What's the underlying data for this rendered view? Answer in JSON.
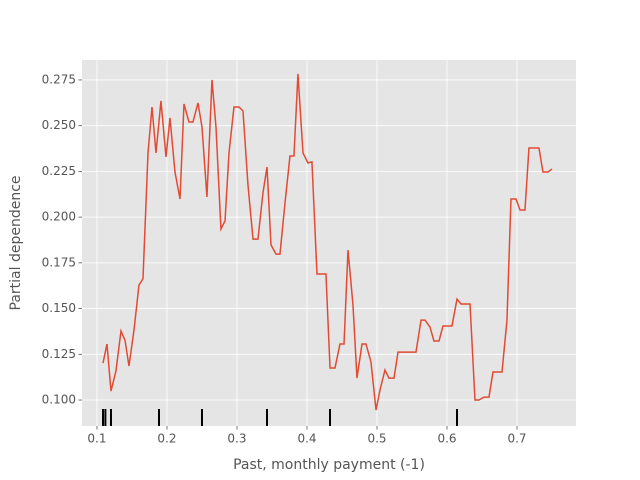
{
  "chart_data": {
    "type": "line",
    "xlabel": "Past, monthly payment (-1)",
    "ylabel": "Partial dependence",
    "x": [
      0.1086,
      0.1143,
      0.12,
      0.1271,
      0.1343,
      0.14,
      0.1457,
      0.1529,
      0.16,
      0.1657,
      0.1729,
      0.1786,
      0.1843,
      0.1914,
      0.1986,
      0.2043,
      0.2114,
      0.2186,
      0.2243,
      0.2314,
      0.2371,
      0.2443,
      0.25,
      0.2571,
      0.2643,
      0.27,
      0.2771,
      0.2829,
      0.2886,
      0.2957,
      0.3029,
      0.3086,
      0.3157,
      0.3229,
      0.33,
      0.3371,
      0.3429,
      0.3486,
      0.3557,
      0.3614,
      0.3686,
      0.3757,
      0.3814,
      0.3871,
      0.3943,
      0.4014,
      0.4071,
      0.4143,
      0.42,
      0.4271,
      0.4329,
      0.44,
      0.4471,
      0.4529,
      0.4586,
      0.4657,
      0.4714,
      0.4786,
      0.4843,
      0.4914,
      0.4986,
      0.5043,
      0.5114,
      0.5171,
      0.5243,
      0.53,
      0.5371,
      0.5429,
      0.55,
      0.5557,
      0.5629,
      0.5686,
      0.5757,
      0.5814,
      0.5886,
      0.5943,
      0.6014,
      0.6071,
      0.6143,
      0.62,
      0.6271,
      0.6329,
      0.64,
      0.6457,
      0.6529,
      0.66,
      0.6657,
      0.6729,
      0.6786,
      0.6857,
      0.6914,
      0.6986,
      0.7043,
      0.7114,
      0.7171,
      0.7243,
      0.7314,
      0.7371,
      0.7443,
      0.75
    ],
    "series": [
      {
        "color": "#E24A33",
        "values": [
          0.1202,
          0.1306,
          0.1049,
          0.1159,
          0.1377,
          0.1328,
          0.1186,
          0.1383,
          0.1629,
          0.1662,
          0.2351,
          0.2602,
          0.2351,
          0.2635,
          0.2329,
          0.2542,
          0.2247,
          0.2099,
          0.2619,
          0.252,
          0.252,
          0.2624,
          0.2493,
          0.211,
          0.275,
          0.2493,
          0.1935,
          0.1979,
          0.2351,
          0.2602,
          0.2602,
          0.258,
          0.2176,
          0.188,
          0.188,
          0.2132,
          0.2274,
          0.1848,
          0.1798,
          0.1798,
          0.2077,
          0.2334,
          0.2334,
          0.2783,
          0.2351,
          0.2296,
          0.2302,
          0.1689,
          0.1689,
          0.1689,
          0.1175,
          0.1175,
          0.1306,
          0.1306,
          0.182,
          0.152,
          0.112,
          0.1306,
          0.1306,
          0.1208,
          0.0945,
          0.1055,
          0.1164,
          0.112,
          0.112,
          0.1262,
          0.1262,
          0.1262,
          0.1262,
          0.1262,
          0.1437,
          0.1437,
          0.1399,
          0.1323,
          0.1323,
          0.1405,
          0.1405,
          0.1405,
          0.1552,
          0.1525,
          0.1525,
          0.1525,
          0.1,
          0.1,
          0.1016,
          0.1016,
          0.1153,
          0.1153,
          0.1153,
          0.1437,
          0.2099,
          0.2099,
          0.2039,
          0.2039,
          0.2378,
          0.2378,
          0.2378,
          0.2247,
          0.2247,
          0.2263
        ]
      }
    ],
    "rug_x": [
      0.1086,
      0.112,
      0.12,
      0.1886,
      0.25,
      0.3429,
      0.4329,
      0.6143
    ],
    "rug_color": "#000000",
    "xlim": [
      0.0786,
      0.7843
    ],
    "ylim": [
      0.0858,
      0.2859
    ],
    "xticks": [
      0.1,
      0.2,
      0.3,
      0.4,
      0.5,
      0.6,
      0.7
    ],
    "yticks": [
      {
        "value": 0.1,
        "label": "0.100"
      },
      {
        "value": 0.125,
        "label": "0.125"
      },
      {
        "value": 0.15,
        "label": "0.150"
      },
      {
        "value": 0.175,
        "label": "0.175"
      },
      {
        "value": 0.2,
        "label": "0.200"
      },
      {
        "value": 0.225,
        "label": "0.225"
      },
      {
        "value": 0.25,
        "label": "0.250"
      },
      {
        "value": 0.275,
        "label": "0.275"
      }
    ],
    "grid": true
  }
}
